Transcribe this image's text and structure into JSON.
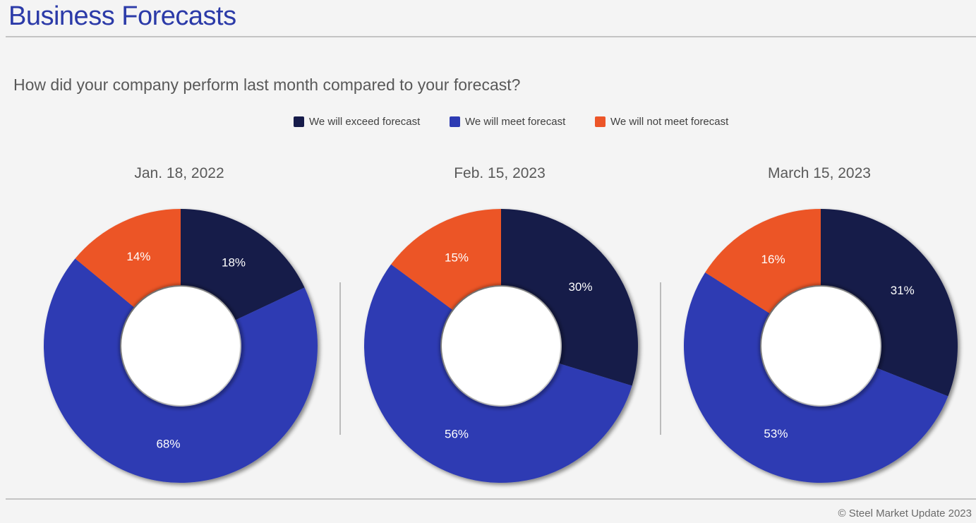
{
  "page": {
    "title": "Business Forecasts",
    "question": "How did your company perform last month compared to your forecast?",
    "footer": "© Steel Market Update 2023"
  },
  "legend": [
    {
      "label": "We will exceed forecast",
      "color": "#161b4a"
    },
    {
      "label": "We will meet forecast",
      "color": "#2d3bb3"
    },
    {
      "label": "We will not meet forecast",
      "color": "#ec5528"
    }
  ],
  "chart_data": [
    {
      "type": "pie",
      "style": "donut",
      "title": "Jan. 18, 2022",
      "categories": [
        "We will exceed forecast",
        "We will meet forecast",
        "We will not meet forecast"
      ],
      "values": [
        18,
        68,
        14
      ],
      "labels": [
        "18%",
        "68%",
        "14%"
      ],
      "colors": [
        "#161b4a",
        "#2d3bb3",
        "#ec5528"
      ],
      "legend_position": "top"
    },
    {
      "type": "pie",
      "style": "donut",
      "title": "Feb. 15, 2023",
      "categories": [
        "We will exceed forecast",
        "We will meet forecast",
        "We will not meet forecast"
      ],
      "values": [
        30,
        56,
        15
      ],
      "labels": [
        "30%",
        "56%",
        "15%"
      ],
      "colors": [
        "#161b4a",
        "#2d3bb3",
        "#ec5528"
      ],
      "legend_position": "top"
    },
    {
      "type": "pie",
      "style": "donut",
      "title": "March 15, 2023",
      "categories": [
        "We will exceed forecast",
        "We will meet forecast",
        "We will not meet forecast"
      ],
      "values": [
        31,
        53,
        16
      ],
      "labels": [
        "31%",
        "53%",
        "16%"
      ],
      "colors": [
        "#161b4a",
        "#2d3bb3",
        "#ec5528"
      ],
      "legend_position": "top"
    }
  ]
}
